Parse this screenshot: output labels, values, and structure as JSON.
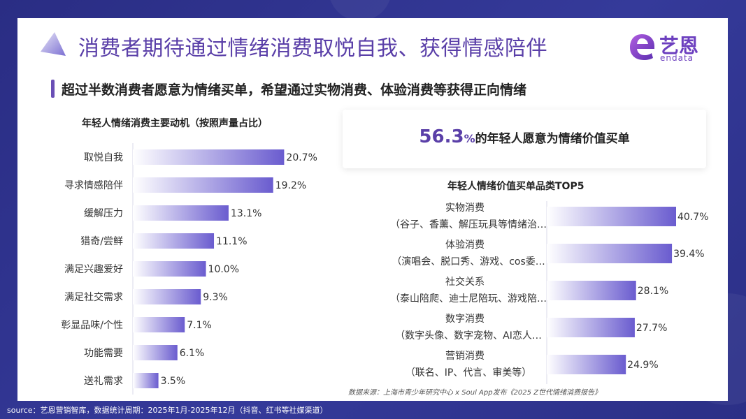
{
  "header": {
    "title": "消费者期待通过情绪消费取悦自我、获得情感陪伴",
    "subtitle": "超过半数消费者愿意为情绪买单，希望通过实物消费、体验消费等获得正向情绪"
  },
  "logo": {
    "cn": "艺恩",
    "en": "endata"
  },
  "stat": {
    "value": "56.3",
    "unit": "%",
    "text": "的年轻人愿意为情绪价值买单"
  },
  "source_note": "数据来源：上海市青少年研究中心 x Soul App发布《2025 Z世代情绪消费报告》",
  "footer": "source：艺恩营销智库，数据统计周期：2025年1月-2025年12月（抖音、红书等社媒渠道）",
  "colors": {
    "bar_start": "#ffffff",
    "bar_end": "#6a5ccf",
    "accent": "#5a3fa8"
  },
  "chart_data": [
    {
      "type": "bar",
      "orientation": "horizontal",
      "title": "年轻人情绪消费主要动机（按照声量占比）",
      "categories": [
        "取悦自我",
        "寻求情感陪伴",
        "缓解压力",
        "猎奇/尝鲜",
        "满足兴趣爱好",
        "满足社交需求",
        "彰显品味/个性",
        "功能需要",
        "送礼需求"
      ],
      "values": [
        20.7,
        19.2,
        13.1,
        11.1,
        10.0,
        9.3,
        7.1,
        6.1,
        3.5
      ],
      "value_labels": [
        "20.7%",
        "19.2%",
        "13.1%",
        "11.1%",
        "10.0%",
        "9.3%",
        "7.1%",
        "6.1%",
        "3.5%"
      ],
      "xlim": [
        0,
        22
      ]
    },
    {
      "type": "bar",
      "orientation": "horizontal",
      "title": "年轻人情绪价值买单品类TOP5",
      "categories": [
        "实物消费",
        "体验消费",
        "社交关系",
        "数字消费",
        "营销消费"
      ],
      "sublabels": [
        "（谷子、香薰、解压玩具等情绪治…",
        "（演唱会、脱口秀、游戏、cos委…",
        "（泰山陪爬、迪士尼陪玩、游戏陪…",
        "（数字头像、数字宠物、AI恋人…",
        "（联名、IP、代言、审美等）"
      ],
      "values": [
        40.7,
        39.4,
        28.1,
        27.7,
        24.9
      ],
      "value_labels": [
        "40.7%",
        "39.4%",
        "28.1%",
        "27.7%",
        "24.9%"
      ],
      "xlim": [
        0,
        44
      ]
    }
  ]
}
